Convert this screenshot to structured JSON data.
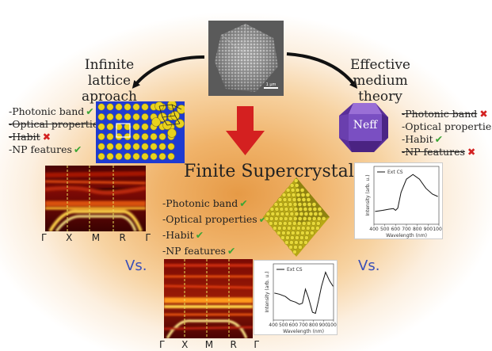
{
  "titles": {
    "infinite": "Infinite lattice aproach",
    "effective": "Effective medium theory",
    "finite": "Finite Supercrystal",
    "neff": "Neff",
    "scale": "1 μm"
  },
  "lists": {
    "left": [
      {
        "label": "-Photonic band",
        "mark": "check",
        "strike": false
      },
      {
        "label": "-Optical properties",
        "mark": "cross",
        "strike": true
      },
      {
        "label": "-Habit",
        "mark": "cross",
        "strike": true
      },
      {
        "label": "-NP features",
        "mark": "check",
        "strike": false
      }
    ],
    "right": [
      {
        "label": "-Photonic band",
        "mark": "cross",
        "strike": true
      },
      {
        "label": "-Optical properties",
        "mark": "check",
        "strike": false
      },
      {
        "label": "-Habit",
        "mark": "check",
        "strike": false
      },
      {
        "label": "-NP features",
        "mark": "cross",
        "strike": true
      }
    ],
    "center": [
      {
        "label": "-Photonic band",
        "mark": "check",
        "strike": false
      },
      {
        "label": "-Optical properties",
        "mark": "check",
        "strike": false
      },
      {
        "label": "-Habit",
        "mark": "check",
        "strike": false
      },
      {
        "label": "-NP features",
        "mark": "check",
        "strike": false
      }
    ]
  },
  "band_ticks": [
    "Γ",
    "X",
    "M",
    "R",
    "Γ"
  ],
  "vs_label": "Vs.",
  "spectra": {
    "legend": "Ext CS",
    "xlabel": "Wavelength (nm)",
    "ylabel": "Intensity (arb. u.)",
    "xticks": [
      "400",
      "500",
      "600",
      "700",
      "800",
      "900",
      "1000"
    ]
  },
  "colors": {
    "arrow_red": "#d42020",
    "check_green": "#3aa635",
    "cross_red": "#d32222",
    "vs_blue": "#3a4fb8",
    "lattice_blue": "#1f3bd1",
    "nanoparticle_yellow": "#e9d21c",
    "octahedron_purple": "#6d3fb3"
  }
}
